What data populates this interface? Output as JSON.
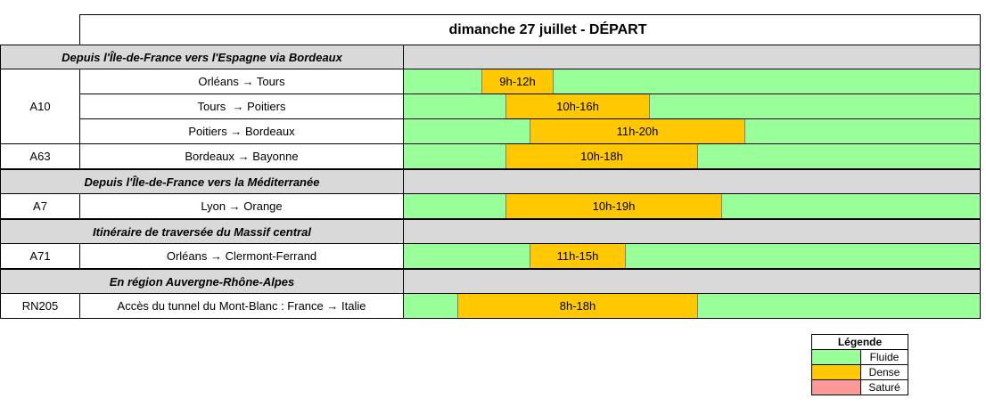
{
  "title": "dimanche 27 juillet  - DÉPART",
  "colors": {
    "fluide": "#99ff99",
    "dense": "#ffc800",
    "sature": "#ff9999",
    "section": "#d9d9d9"
  },
  "sections": [
    {
      "label": "Depuis l'Île-de-France vers l'Espagne via Bordeaux",
      "groups": [
        {
          "road": "A10",
          "rows": [
            {
              "route": "Orléans → Tours",
              "period": "9h-12h",
              "start_hour": 9,
              "end_hour": 12
            },
            {
              "route": "Tours  → Poitiers",
              "period": "10h-16h",
              "start_hour": 10,
              "end_hour": 16
            },
            {
              "route": "Poitiers → Bordeaux",
              "period": "11h-20h",
              "start_hour": 11,
              "end_hour": 20
            }
          ]
        },
        {
          "road": "A63",
          "rows": [
            {
              "route": "Bordeaux → Bayonne",
              "period": "10h-18h",
              "start_hour": 10,
              "end_hour": 18
            }
          ]
        }
      ]
    },
    {
      "label": "Depuis l'Île-de-France vers la Méditerranée",
      "groups": [
        {
          "road": "A7",
          "rows": [
            {
              "route": "Lyon → Orange",
              "period": "10h-19h",
              "start_hour": 10,
              "end_hour": 19
            }
          ]
        }
      ]
    },
    {
      "label": "Itinéraire de traversée du Massif central",
      "groups": [
        {
          "road": "A71",
          "rows": [
            {
              "route": "Orléans → Clermont-Ferrand",
              "period": "11h-15h",
              "start_hour": 11,
              "end_hour": 15
            }
          ]
        }
      ]
    },
    {
      "label": "En région Auvergne-Rhône-Alpes",
      "groups": [
        {
          "road": "RN205",
          "rows": [
            {
              "route": "Accès du tunnel du Mont-Blanc : France → Italie",
              "period": "8h-18h",
              "start_hour": 8,
              "end_hour": 18
            }
          ]
        }
      ]
    }
  ],
  "legend": {
    "title": "Légende",
    "items": [
      {
        "label": "Fluide",
        "color": "#99ff99"
      },
      {
        "label": "Dense",
        "color": "#ffc800"
      },
      {
        "label": "Saturé",
        "color": "#ff9999"
      }
    ]
  }
}
